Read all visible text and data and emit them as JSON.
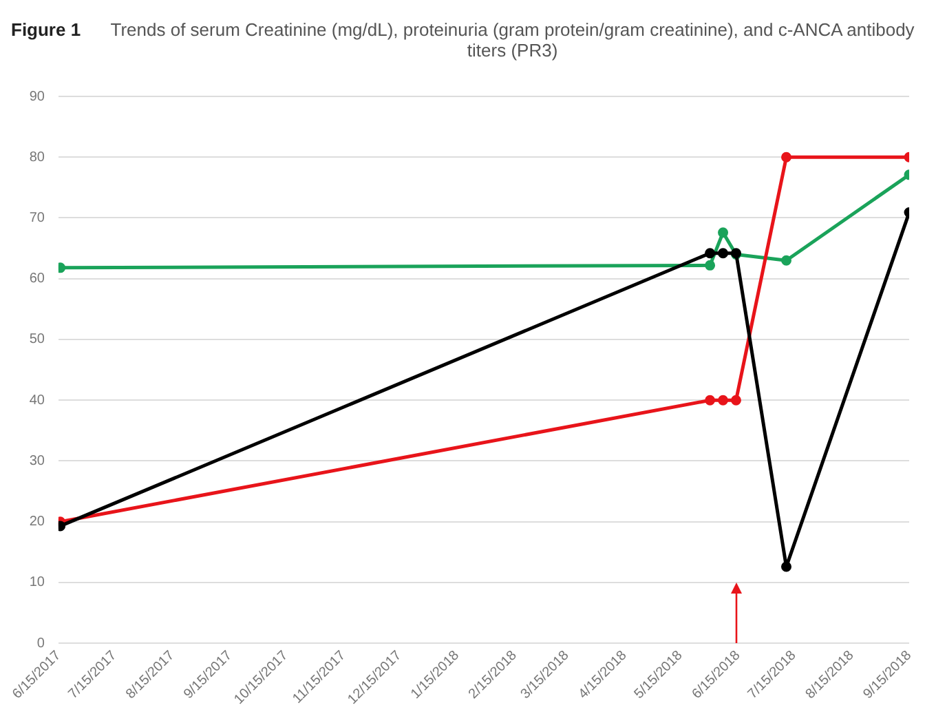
{
  "chart_data": {
    "type": "line",
    "title": "Trends of serum Creatinine (mg/dL), proteinuria (gram protein/gram creatinine), and c-ANCA antibody titers (PR3)",
    "annotations": [
      "Figure 1"
    ],
    "series": [
      {
        "color": "#1aa35a",
        "x": [
          "2017-06-16",
          "2018-05-31",
          "2018-06-07",
          "2018-06-14",
          "2018-07-11",
          "2018-09-15"
        ],
        "values": [
          61.8,
          62.2,
          67.6,
          64,
          63,
          77.1
        ]
      },
      {
        "color": "#e8141a",
        "x": [
          "2017-06-16",
          "2018-05-31",
          "2018-06-07",
          "2018-06-14",
          "2018-07-11",
          "2018-09-15"
        ],
        "values": [
          20,
          40,
          40,
          40,
          80,
          80
        ]
      },
      {
        "color": "#000000",
        "x": [
          "2017-06-16",
          "2018-05-31",
          "2018-06-07",
          "2018-06-14",
          "2018-07-11",
          "2018-09-15"
        ],
        "values": [
          19.3,
          64.2,
          64.2,
          64.2,
          12.6,
          70.9
        ]
      }
    ],
    "xlim": [
      "2017-06-15",
      "2018-09-15"
    ],
    "xticks": [
      {
        "value": "2017-06-15",
        "label": "6/15/2017"
      },
      {
        "value": "2017-07-15",
        "label": "7/15/2017"
      },
      {
        "value": "2017-08-15",
        "label": "8/15/2017"
      },
      {
        "value": "2017-09-15",
        "label": "9/15/2017"
      },
      {
        "value": "2017-10-15",
        "label": "10/15/2017"
      },
      {
        "value": "2017-11-15",
        "label": "11/15/2017"
      },
      {
        "value": "2017-12-15",
        "label": "12/15/2017"
      },
      {
        "value": "2018-01-15",
        "label": "1/15/2018"
      },
      {
        "value": "2018-02-15",
        "label": "2/15/2018"
      },
      {
        "value": "2018-03-15",
        "label": "3/15/2018"
      },
      {
        "value": "2018-04-15",
        "label": "4/15/2018"
      },
      {
        "value": "2018-05-15",
        "label": "5/15/2018"
      },
      {
        "value": "2018-06-15",
        "label": "6/15/2018"
      },
      {
        "value": "2018-07-15",
        "label": "7/15/2018"
      },
      {
        "value": "2018-08-15",
        "label": "8/15/2018"
      },
      {
        "value": "2018-09-15",
        "label": "9/15/2018"
      }
    ],
    "ylim": [
      0,
      90
    ],
    "yticks": [
      0,
      10,
      20,
      30,
      40,
      50,
      60,
      70,
      80,
      90
    ],
    "grid": "y",
    "legend": false,
    "marker": "circle",
    "line_style": "solid"
  }
}
